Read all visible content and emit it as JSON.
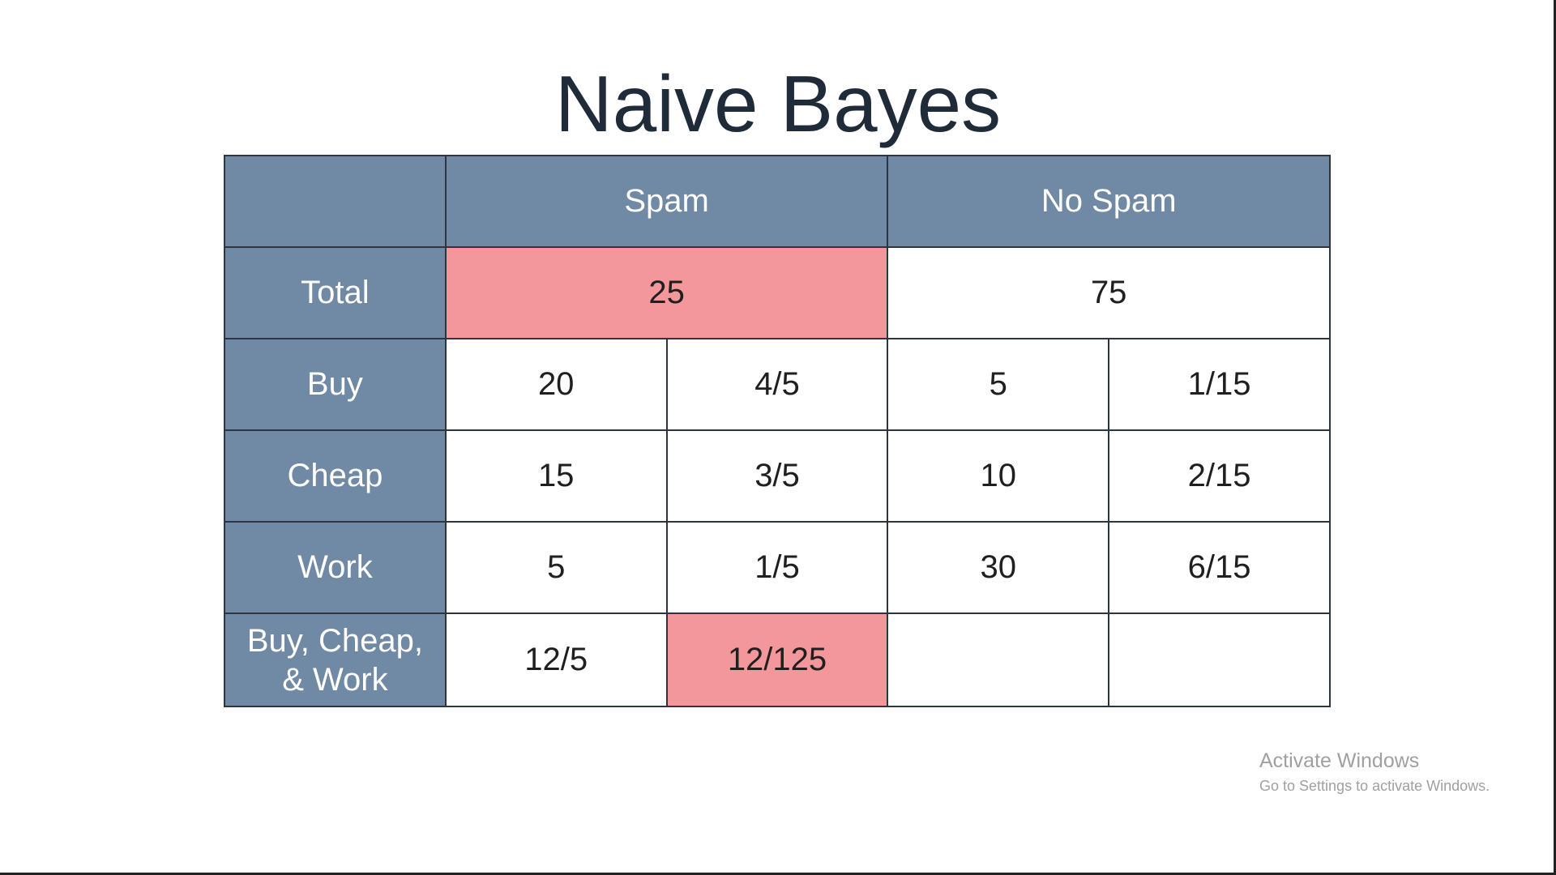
{
  "title": "Naive Bayes",
  "table": {
    "corner": "",
    "columns": [
      "Spam",
      "No Spam"
    ],
    "total_row": {
      "label": "Total",
      "spam": "25",
      "no_spam": "75"
    },
    "word_rows": [
      {
        "label": "Buy",
        "spam_count": "20",
        "spam_prob": "4/5",
        "nospam_count": "5",
        "nospam_prob": "1/15"
      },
      {
        "label": "Cheap",
        "spam_count": "15",
        "spam_prob": "3/5",
        "nospam_count": "10",
        "nospam_prob": "2/15"
      },
      {
        "label": "Work",
        "spam_count": "5",
        "spam_prob": "1/5",
        "nospam_count": "30",
        "nospam_prob": "6/15"
      }
    ],
    "combined_row": {
      "label_line1": "Buy, Cheap,",
      "label_line2": "& Work",
      "spam_count": "12/5",
      "spam_prob": "12/125",
      "nospam_count": "",
      "nospam_prob": ""
    }
  },
  "colors": {
    "header_bg": "#7089a4",
    "highlight": "#f4979a",
    "title_text": "#1f2b38"
  },
  "watermark": {
    "title": "Activate Windows",
    "subtitle": "Go to Settings to activate Windows."
  }
}
